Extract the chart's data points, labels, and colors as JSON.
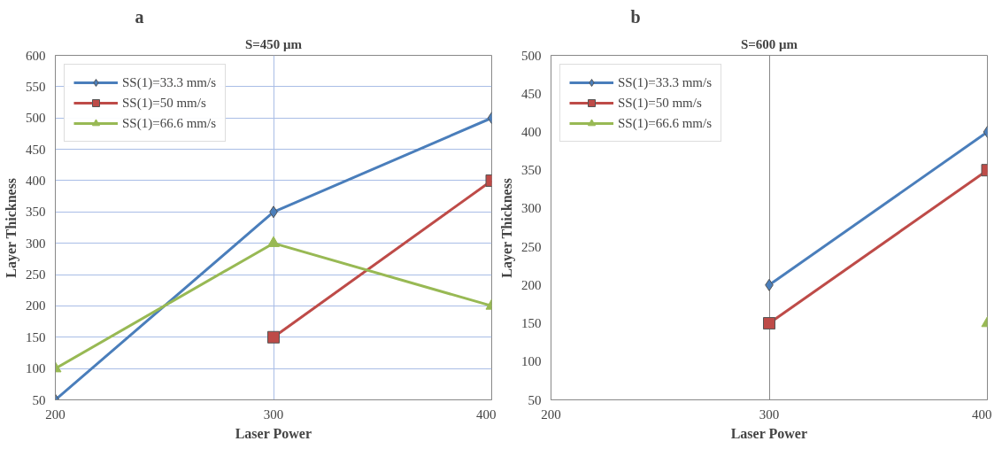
{
  "chart_data": [
    {
      "type": "line",
      "title": "a",
      "subtitle": "S=450 μm",
      "xlabel": "Laser Power",
      "ylabel": "Layer Thickness",
      "x": [
        200,
        300,
        400
      ],
      "xlim": [
        200,
        400
      ],
      "xticks": [
        200,
        300,
        400
      ],
      "ylim": [
        50,
        600
      ],
      "yticks": [
        50,
        100,
        150,
        200,
        250,
        300,
        350,
        400,
        450,
        500,
        550,
        600
      ],
      "grid": true,
      "legend": "top left",
      "series": [
        {
          "name": "SS(1)=33.3 mm/s",
          "color": "#4a7ebb",
          "marker": "diamond",
          "values": [
            50,
            350,
            500
          ]
        },
        {
          "name": "SS(1)=50 mm/s",
          "color": "#be4b48",
          "marker": "square",
          "values": [
            null,
            150,
            400
          ]
        },
        {
          "name": "SS(1)=66.6 mm/s",
          "color": "#98b954",
          "marker": "triangle",
          "values": [
            100,
            300,
            200
          ]
        }
      ]
    },
    {
      "type": "line",
      "title": "b",
      "subtitle": "S=600 μm",
      "xlabel": "Laser Power",
      "ylabel": "Layer Thickness",
      "x": [
        300,
        400
      ],
      "xlim": [
        200,
        400
      ],
      "xticks": [
        200,
        300,
        400
      ],
      "ylim": [
        50,
        500
      ],
      "yticks": [
        50,
        100,
        150,
        200,
        250,
        300,
        350,
        400,
        450,
        500
      ],
      "grid": "x",
      "legend": "top left",
      "series": [
        {
          "name": "SS(1)=33.3 mm/s",
          "color": "#4a7ebb",
          "marker": "diamond",
          "values": [
            200,
            400
          ]
        },
        {
          "name": "SS(1)=50 mm/s",
          "color": "#be4b48",
          "marker": "square",
          "values": [
            150,
            350
          ]
        },
        {
          "name": "SS(1)=66.6 mm/s",
          "color": "#98b954",
          "marker": "triangle",
          "values": [
            null,
            150
          ]
        }
      ]
    }
  ]
}
